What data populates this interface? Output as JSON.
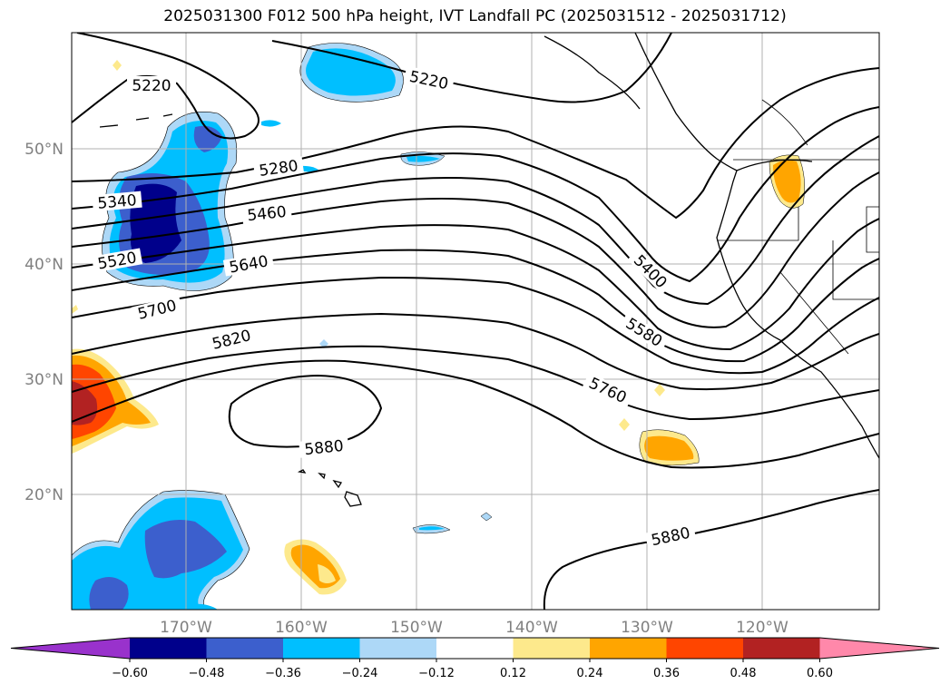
{
  "title": "2025031300 F012 500 hPa height, IVT Landfall PC (2025031512 - 2025031712)",
  "map": {
    "lat_labels": [
      "50°N",
      "40°N",
      "30°N",
      "20°N"
    ],
    "lon_labels": [
      "170°W",
      "160°W",
      "150°W",
      "140°W",
      "130°W",
      "120°W"
    ],
    "contour_labels": [
      "5220",
      "5220",
      "5280",
      "5340",
      "5460",
      "5520",
      "5640",
      "5700",
      "5820",
      "5880",
      "5400",
      "5580",
      "5760",
      "5880"
    ]
  },
  "colorbar": {
    "tick_labels": [
      "−0.60",
      "−0.48",
      "−0.36",
      "−0.24",
      "−0.12",
      "0.12",
      "0.24",
      "0.36",
      "0.48",
      "0.60"
    ],
    "colors": [
      "#9932cc",
      "#00008b",
      "#3c5fcd",
      "#00bfff",
      "#add8f7",
      "#ffffff",
      "#fde98c",
      "#ffa500",
      "#ff4500",
      "#b22222",
      "#ff88aa"
    ]
  }
}
